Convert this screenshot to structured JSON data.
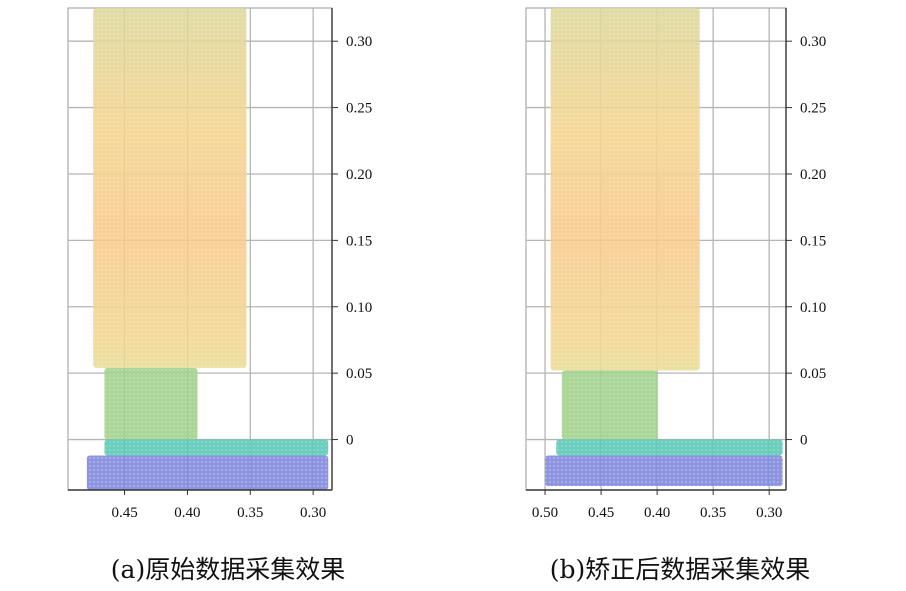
{
  "chart_data": [
    {
      "type": "scatter",
      "caption": "(a)原始数据采集效果",
      "x_ticks": [
        0.45,
        0.4,
        0.35,
        0.3
      ],
      "x_tick_labels": [
        "0.45",
        "0.40",
        "0.35",
        "0.30"
      ],
      "y_ticks": [
        0,
        0.05,
        0.1,
        0.15,
        0.2,
        0.25,
        0.3
      ],
      "y_tick_labels": [
        "0",
        "0.05",
        "0.10",
        "0.15",
        "0.20",
        "0.25",
        "0.30"
      ],
      "xlim": [
        0.495,
        0.285
      ],
      "ylim": [
        -0.038,
        0.325
      ],
      "x_reversed": true,
      "grid": true,
      "y_axis_side": "right",
      "regions": [
        {
          "part": "upper-block",
          "x_range": [
            0.475,
            0.353
          ],
          "y_range": [
            0.054,
            0.325
          ],
          "color": "#f3d07d"
        },
        {
          "part": "neck",
          "x_range": [
            0.466,
            0.392
          ],
          "y_range": [
            0.0,
            0.054
          ],
          "color": "#9fd08a"
        },
        {
          "part": "base-arm",
          "x_range": [
            0.466,
            0.288
          ],
          "y_range": [
            -0.012,
            0.0
          ],
          "color": "#58c7b5"
        },
        {
          "part": "base-bottom",
          "x_range": [
            0.48,
            0.288
          ],
          "y_range": [
            -0.038,
            -0.012
          ],
          "color": "#7d86dd"
        }
      ]
    },
    {
      "type": "scatter",
      "caption": "(b)矫正后数据采集效果",
      "x_ticks": [
        0.5,
        0.45,
        0.4,
        0.35,
        0.3
      ],
      "x_tick_labels": [
        "0.50",
        "0.45",
        "0.40",
        "0.35",
        "0.30"
      ],
      "y_ticks": [
        0,
        0.05,
        0.1,
        0.15,
        0.2,
        0.25,
        0.3
      ],
      "y_tick_labels": [
        "0",
        "0.05",
        "0.10",
        "0.15",
        "0.20",
        "0.25",
        "0.30"
      ],
      "xlim": [
        0.517,
        0.285
      ],
      "ylim": [
        -0.038,
        0.325
      ],
      "x_reversed": true,
      "grid": true,
      "y_axis_side": "right",
      "regions": [
        {
          "part": "upper-block",
          "x_range": [
            0.495,
            0.362
          ],
          "y_range": [
            0.052,
            0.325
          ],
          "color": "#f3d07d"
        },
        {
          "part": "neck",
          "x_range": [
            0.485,
            0.4
          ],
          "y_range": [
            0.0,
            0.052
          ],
          "color": "#9fd08a"
        },
        {
          "part": "base-arm",
          "x_range": [
            0.49,
            0.288
          ],
          "y_range": [
            -0.012,
            0.0
          ],
          "color": "#58c7b5"
        },
        {
          "part": "base-bottom",
          "x_range": [
            0.5,
            0.288
          ],
          "y_range": [
            -0.035,
            -0.012
          ],
          "color": "#7d86dd"
        }
      ]
    }
  ]
}
